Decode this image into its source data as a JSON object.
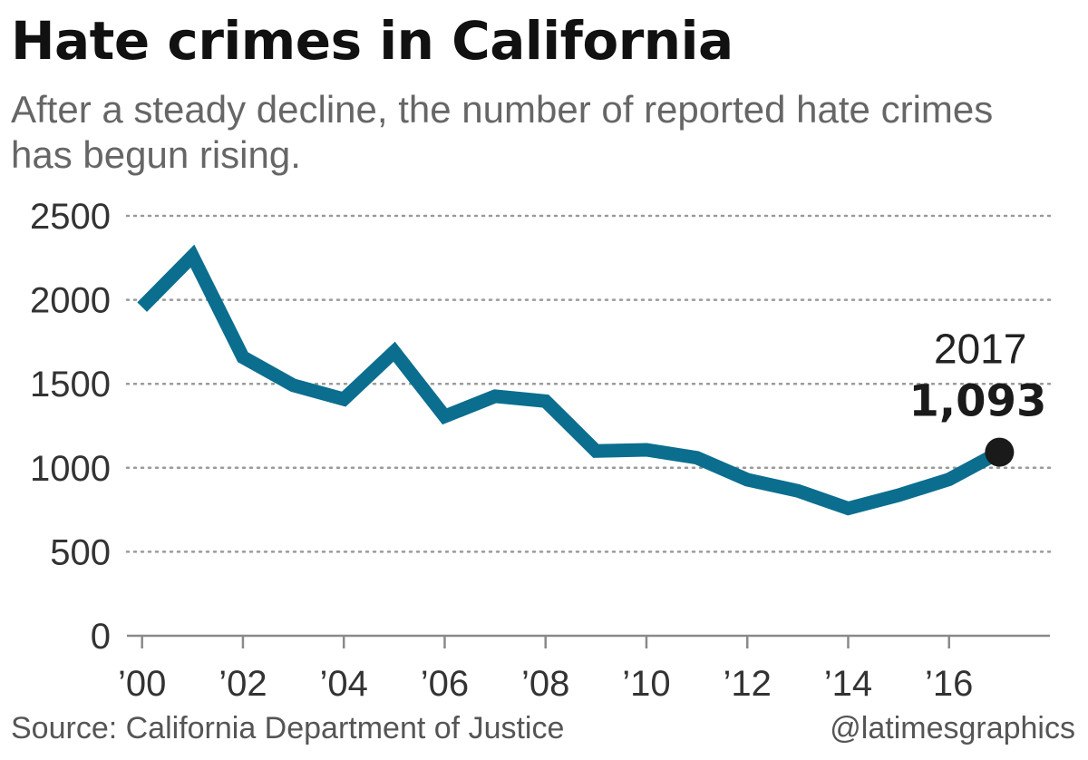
{
  "chart_data": {
    "type": "line",
    "title": "Hate crimes in California",
    "subtitle": "After a steady decline, the number of reported hate crimes has begun rising.",
    "xlabel": "",
    "ylabel": "",
    "x": [
      2000,
      2001,
      2002,
      2003,
      2004,
      2005,
      2006,
      2007,
      2008,
      2009,
      2010,
      2011,
      2012,
      2013,
      2014,
      2015,
      2016,
      2017
    ],
    "values": [
      1957,
      2261,
      1659,
      1491,
      1409,
      1691,
      1306,
      1426,
      1397,
      1100,
      1107,
      1060,
      929,
      863,
      758,
      837,
      931,
      1093
    ],
    "ylim": [
      0,
      2500
    ],
    "xlim": [
      1999.7,
      2018
    ],
    "y_ticks": [
      0,
      500,
      1000,
      1500,
      2000,
      2500
    ],
    "y_tick_labels": [
      "0",
      "500",
      "1000",
      "1500",
      "2000",
      "2500"
    ],
    "x_ticks": [
      2000,
      2002,
      2004,
      2006,
      2008,
      2010,
      2012,
      2014,
      2016
    ],
    "x_tick_labels": [
      "’00",
      "’02",
      "’04",
      "’06",
      "’08",
      "’10",
      "’12",
      "’14",
      "’16"
    ],
    "grid": true,
    "legend": "none",
    "line_color": "#0b6e8f",
    "annotation": {
      "x": 2017,
      "value": 1093,
      "year_label": "2017",
      "value_label": "1,093"
    },
    "source": "Source: California Department of Justice",
    "credit": "@latimesgraphics"
  }
}
